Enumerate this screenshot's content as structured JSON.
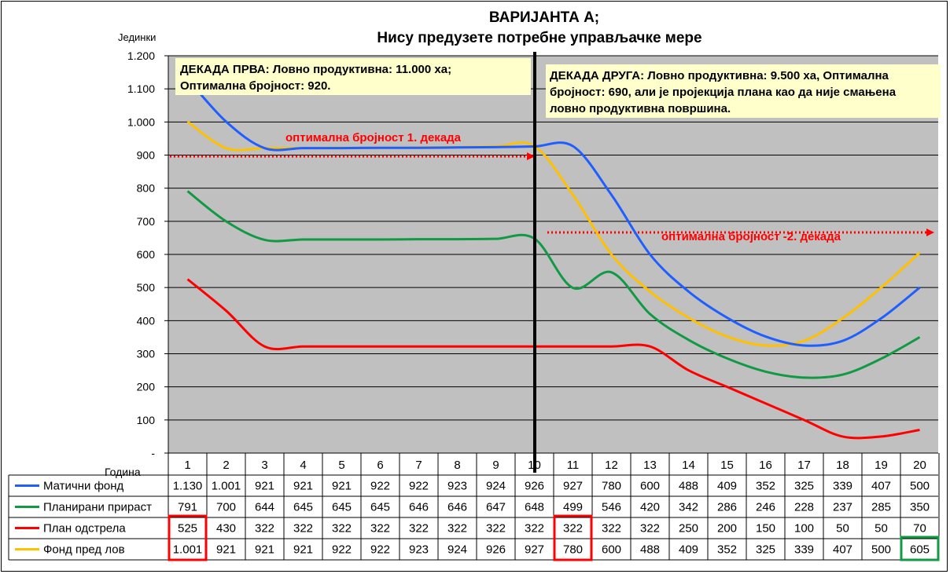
{
  "chart_data": {
    "type": "line",
    "title": "ВАРИЈАНТА  А;",
    "subtitle": "Нису предузете потребне управљачке мере",
    "ylabel": "Јединки",
    "xlabel": "Година",
    "ylim": [
      0,
      1200
    ],
    "y_ticks": [
      "-",
      "100",
      "200",
      "300",
      "400",
      "500",
      "600",
      "700",
      "800",
      "900",
      "1.000",
      "1.100",
      "1.200"
    ],
    "categories": [
      "1",
      "2",
      "3",
      "4",
      "5",
      "6",
      "7",
      "8",
      "9",
      "10",
      "11",
      "12",
      "13",
      "14",
      "15",
      "16",
      "17",
      "18",
      "19",
      "20"
    ],
    "grid": true,
    "series": [
      {
        "name": "Матични фонд",
        "color": "#1f5fff",
        "values": [
          1130,
          1001,
          921,
          921,
          921,
          922,
          922,
          923,
          924,
          926,
          927,
          780,
          600,
          488,
          409,
          352,
          325,
          339,
          407,
          500
        ],
        "labels": [
          "1.130",
          "1.001",
          "921",
          "921",
          "921",
          "922",
          "922",
          "923",
          "924",
          "926",
          "927",
          "780",
          "600",
          "488",
          "409",
          "352",
          "325",
          "339",
          "407",
          "500"
        ]
      },
      {
        "name": "Планирани прираст",
        "color": "#119944",
        "values": [
          791,
          700,
          644,
          645,
          645,
          645,
          646,
          646,
          647,
          648,
          499,
          546,
          420,
          342,
          286,
          246,
          228,
          237,
          285,
          350
        ],
        "labels": [
          "791",
          "700",
          "644",
          "645",
          "645",
          "645",
          "646",
          "646",
          "647",
          "648",
          "499",
          "546",
          "420",
          "342",
          "286",
          "246",
          "228",
          "237",
          "285",
          "350"
        ]
      },
      {
        "name": "План одстрела",
        "color": "#ff0000",
        "values": [
          525,
          430,
          322,
          322,
          322,
          322,
          322,
          322,
          322,
          322,
          322,
          322,
          322,
          250,
          200,
          150,
          100,
          50,
          50,
          70
        ],
        "labels": [
          "525",
          "430",
          "322",
          "322",
          "322",
          "322",
          "322",
          "322",
          "322",
          "322",
          "322",
          "322",
          "322",
          "250",
          "200",
          "150",
          "100",
          "50",
          "50",
          "70"
        ]
      },
      {
        "name": "Фонд пред лов",
        "color": "#ffc000",
        "values": [
          1001,
          921,
          921,
          921,
          922,
          922,
          923,
          924,
          926,
          927,
          780,
          600,
          488,
          409,
          352,
          325,
          339,
          407,
          500,
          605
        ],
        "labels": [
          "1.001",
          "921",
          "921",
          "921",
          "922",
          "922",
          "923",
          "924",
          "926",
          "927",
          "780",
          "600",
          "488",
          "409",
          "352",
          "325",
          "339",
          "407",
          "500",
          "605"
        ]
      }
    ],
    "note1": {
      "line1": "ДЕКАДА ПРВА: Ловно продуктивна: 11.000 ха;",
      "line2": "Оптимална бројност: 920."
    },
    "note2": {
      "line1": "ДЕКАДА ДРУГА: Ловно продуктивна: 9.500 ха, Оптимална",
      "line2": "бројност: 690, али је пројекција плана као да није смањена",
      "line3": "ловно продуктивна површина."
    },
    "optimum1": {
      "label": "оптимална бројност 1. декада",
      "value": 920
    },
    "optimum2": {
      "label": "оптимална бројност -2. декада",
      "value": 690
    },
    "decade_divider_after": "10",
    "plot_bg": "#c0c0c0",
    "note_bg": "#ffffcc",
    "highlight_red": "#ff0000",
    "highlight_green": "#119944"
  }
}
